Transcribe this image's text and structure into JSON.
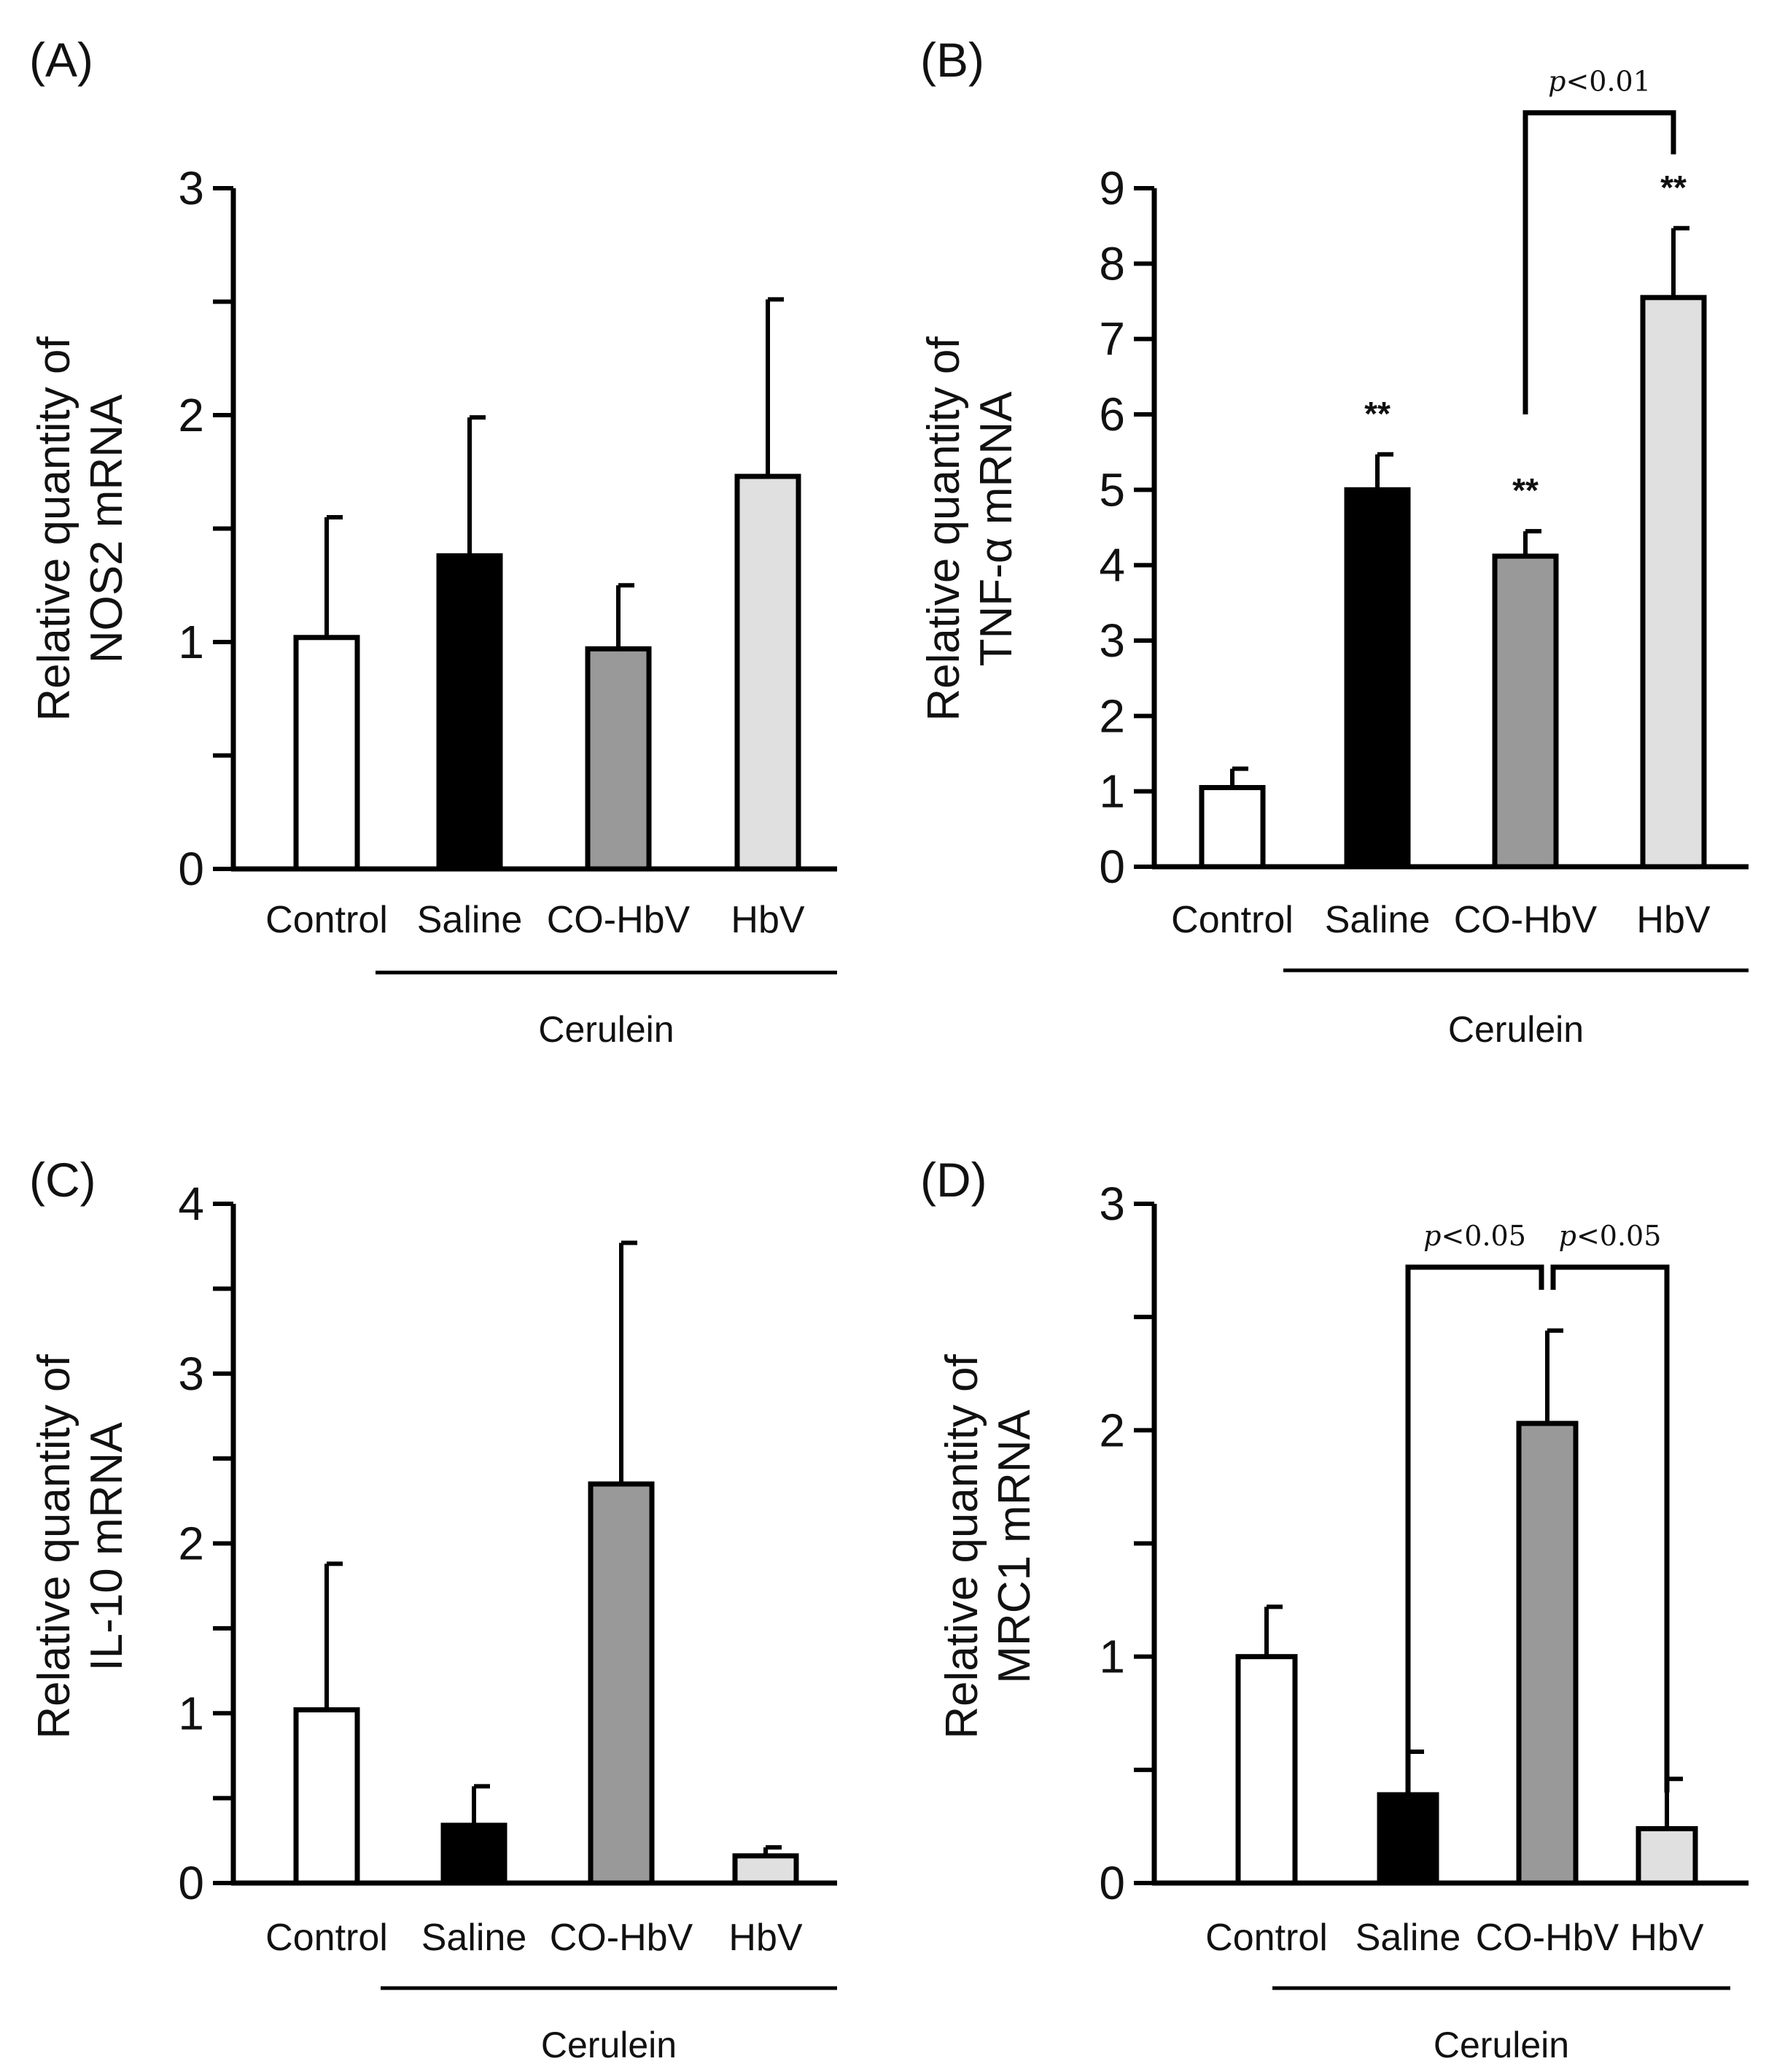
{
  "chart_data": [
    {
      "panel": "(A)",
      "type": "bar",
      "categories": [
        "Control",
        "Saline",
        "CO-HbV",
        "HbV"
      ],
      "values": [
        1.02,
        1.38,
        0.97,
        1.73
      ],
      "errors": [
        0.53,
        0.61,
        0.28,
        0.78
      ],
      "colors": [
        "#ffffff",
        "#000000",
        "#999999",
        "#e0e0e0"
      ],
      "ylabel": "Relative quantity of NOS2 mRNA",
      "ylabel_lines": [
        "Relative quantity of",
        "NOS2 mRNA"
      ],
      "ylim": [
        0,
        3
      ],
      "yticks": [
        0,
        1,
        2,
        3
      ],
      "ytick_labels": [
        "0",
        "1",
        "2",
        "3"
      ],
      "minor_ticks": [
        0.5,
        1.5,
        2.5
      ],
      "group_label": "Cerulein",
      "group_categories": [
        "Saline",
        "CO-HbV",
        "HbV"
      ],
      "significance": [],
      "brackets": []
    },
    {
      "panel": "(B)",
      "type": "bar",
      "categories": [
        "Control",
        "Saline",
        "CO-HbV",
        "HbV"
      ],
      "values": [
        1.05,
        5.0,
        4.12,
        7.55
      ],
      "errors": [
        0.25,
        0.47,
        0.33,
        0.92
      ],
      "colors": [
        "#ffffff",
        "#000000",
        "#999999",
        "#e0e0e0"
      ],
      "ylabel": "Relative quantity of TNF-α mRNA",
      "ylabel_lines": [
        "Relative quantity of",
        "TNF-α mRNA"
      ],
      "ylim": [
        0,
        9
      ],
      "yticks": [
        0,
        1,
        2,
        3,
        4,
        5,
        6,
        7,
        8,
        9
      ],
      "ytick_labels": [
        "0",
        "1",
        "2",
        "3",
        "4",
        "5",
        "6",
        "7",
        "8",
        "9"
      ],
      "minor_ticks": [],
      "group_label": "Cerulein",
      "group_categories": [
        "Saline",
        "CO-HbV",
        "HbV"
      ],
      "significance": [
        "",
        "**",
        "**",
        "**"
      ],
      "brackets": [
        {
          "from": 2,
          "to": 3,
          "label_p": "p",
          "label_rest": "<0.01",
          "level": 10.0,
          "from_y": 6.0,
          "to_y": 9.45
        }
      ]
    },
    {
      "panel": "(C)",
      "type": "bar",
      "categories": [
        "Control",
        "Saline",
        "CO-HbV",
        "HbV"
      ],
      "values": [
        1.02,
        0.34,
        2.35,
        0.16
      ],
      "errors": [
        0.86,
        0.23,
        1.42,
        0.05
      ],
      "colors": [
        "#ffffff",
        "#000000",
        "#999999",
        "#e0e0e0"
      ],
      "ylabel": "Relative quantity of IL-10 mRNA",
      "ylabel_lines": [
        "Relative quantity of",
        "IL-10 mRNA"
      ],
      "ylim": [
        0,
        4
      ],
      "yticks": [
        0,
        1,
        2,
        3,
        4
      ],
      "ytick_labels": [
        "0",
        "1",
        "2",
        "3",
        "4"
      ],
      "minor_ticks": [
        0.5,
        1.5,
        2.5,
        3.5
      ],
      "group_label": "Cerulein",
      "group_categories": [
        "Saline",
        "CO-HbV",
        "HbV"
      ],
      "significance": [],
      "brackets": []
    },
    {
      "panel": "(D)",
      "type": "bar",
      "categories": [
        "Control",
        "Saline",
        "CO-HbV",
        "HbV"
      ],
      "values": [
        1.0,
        0.39,
        2.03,
        0.24
      ],
      "errors": [
        0.22,
        0.19,
        0.41,
        0.22
      ],
      "colors": [
        "#ffffff",
        "#000000",
        "#999999",
        "#e0e0e0"
      ],
      "ylabel": "Relative quantity of MRC1 mRNA",
      "ylabel_lines": [
        "Relative quantity of",
        "MRC1 mRNA"
      ],
      "ylim": [
        0,
        3
      ],
      "yticks": [
        0,
        1,
        2,
        3
      ],
      "ytick_labels": [
        "0",
        "1",
        "2",
        "3"
      ],
      "minor_ticks": [
        0.5,
        1.5,
        2.5
      ],
      "group_label": "Cerulein",
      "group_categories": [
        "Saline",
        "CO-HbV",
        "HbV"
      ],
      "significance": [],
      "brackets": [
        {
          "from": 1,
          "to": 2,
          "label_p": "p",
          "label_rest": "<0.05",
          "level": 2.72,
          "from_y": 0.38,
          "to_y": 2.62
        },
        {
          "from": 2,
          "to": 3,
          "label_p": "p",
          "label_rest": "<0.05",
          "level": 2.72,
          "from_y": 2.62,
          "to_y": 0.4
        }
      ]
    }
  ]
}
